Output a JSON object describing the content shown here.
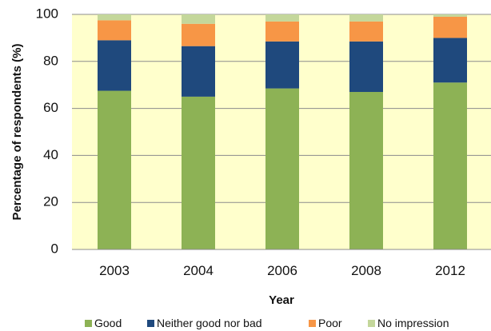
{
  "chart_data": {
    "type": "bar",
    "stacked": true,
    "categories": [
      "2003",
      "2004",
      "2006",
      "2008",
      "2012"
    ],
    "series": [
      {
        "name": "Good",
        "values": [
          67.5,
          65,
          68.5,
          67,
          71
        ],
        "color": "#8db255"
      },
      {
        "name": "Neither good nor bad",
        "values": [
          21.5,
          21.5,
          20,
          21.5,
          19
        ],
        "color": "#1f497d"
      },
      {
        "name": "Poor",
        "values": [
          8.5,
          9.5,
          8.5,
          8.5,
          9
        ],
        "color": "#f79646"
      },
      {
        "name": "No impression",
        "values": [
          2.5,
          4,
          3,
          3,
          1
        ],
        "color": "#c4d79b"
      }
    ],
    "title": "",
    "xlabel": "Year",
    "ylabel": "Percentage of respondents (%)",
    "ylim": [
      0,
      100
    ],
    "yticks": [
      0,
      20,
      40,
      60,
      80,
      100
    ],
    "grid": true,
    "plot_background": "#ffffcc",
    "legend_position": "bottom"
  }
}
